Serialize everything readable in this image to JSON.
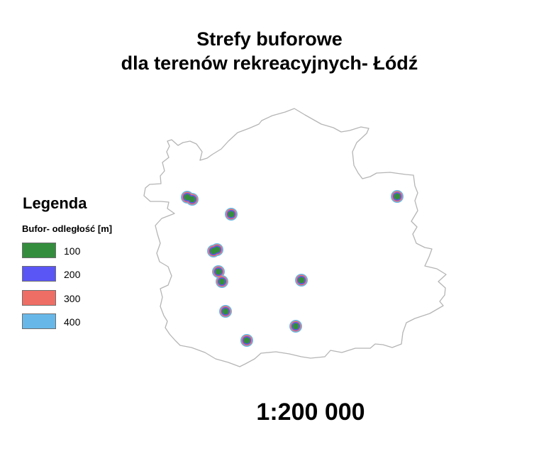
{
  "map": {
    "title_lines": [
      "Strefy buforowe",
      "dla terenów rekreacyjnych- Łódź"
    ],
    "scale": "1:200 000",
    "legend": {
      "title": "Legenda",
      "subtitle": "Bufor- odległość [m]",
      "items": [
        {
          "label": "100",
          "color": "#338d3d"
        },
        {
          "label": "200",
          "color": "#5a56f5"
        },
        {
          "label": "300",
          "color": "#ee6e66"
        },
        {
          "label": "400",
          "color": "#67b8e8"
        }
      ]
    },
    "boundary_color": "#b5b5b5",
    "buffer_zone_count": 12
  }
}
